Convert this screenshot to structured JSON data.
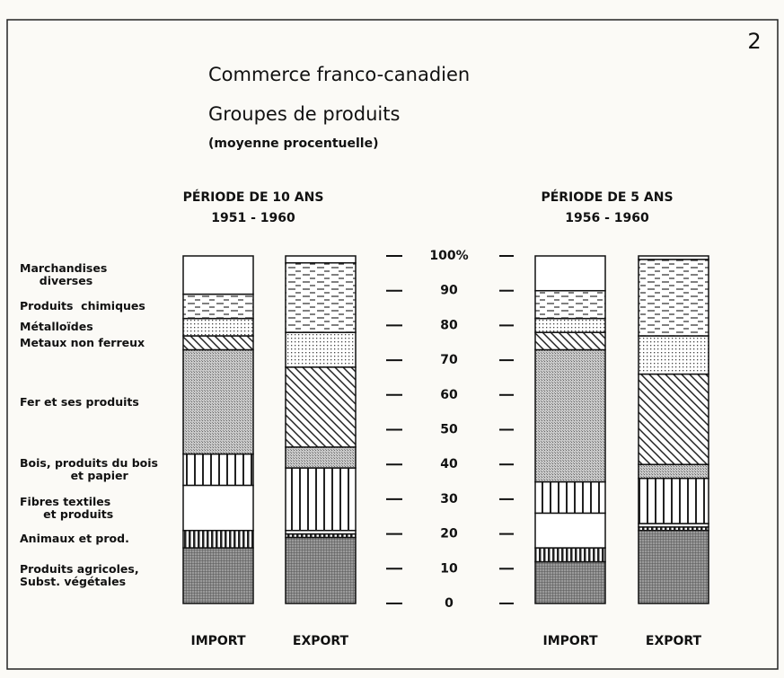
{
  "page_number": "2",
  "chart_data": {
    "type": "bar",
    "stacked": true,
    "title": "Commerce  franco-canadien",
    "subtitle": "Groupes de produits",
    "note": "(moyenne procentuelle)",
    "groups": [
      {
        "name": "PÉRIODE  DE 10 ANS",
        "years": "1951 - 1960"
      },
      {
        "name": "PÉRIODE  DE 5 ANS",
        "years": "1956 - 1960"
      }
    ],
    "categories": [
      "IMPORT",
      "EXPORT",
      "IMPORT",
      "EXPORT"
    ],
    "ylim": [
      0,
      100
    ],
    "yticks": [
      0,
      10,
      20,
      30,
      40,
      50,
      60,
      70,
      80,
      90,
      {
        "value": 100,
        "label": "100%"
      }
    ],
    "series": [
      {
        "name": "Produits agricoles,\nSubst. végétales",
        "pattern": "grid-dark",
        "values": [
          16,
          19,
          12,
          21
        ]
      },
      {
        "name": "Animaux et prod.",
        "pattern": "vlines-dense",
        "values": [
          5,
          1,
          4,
          1
        ]
      },
      {
        "name": "Fibres textiles\n      et produits",
        "pattern": "plain",
        "values": [
          13,
          1,
          10,
          1
        ]
      },
      {
        "name": "Bois, produits du bois\n             et papier",
        "pattern": "vlines",
        "values": [
          9,
          18,
          9,
          13
        ]
      },
      {
        "name": "Fer et ses produits",
        "pattern": "stipple",
        "values": [
          30,
          6,
          38,
          4
        ]
      },
      {
        "name": "Metaux non ferreux",
        "pattern": "diag",
        "values": [
          4,
          23,
          5,
          26
        ]
      },
      {
        "name": "Métalloïdes",
        "pattern": "dots",
        "values": [
          5,
          10,
          4,
          11
        ]
      },
      {
        "name": "Produits  chimiques",
        "pattern": "dashes",
        "values": [
          7,
          20,
          8,
          22
        ]
      },
      {
        "name": "Marchandises\n     diverses",
        "pattern": "plain",
        "values": [
          11,
          2,
          10,
          1
        ]
      }
    ]
  }
}
